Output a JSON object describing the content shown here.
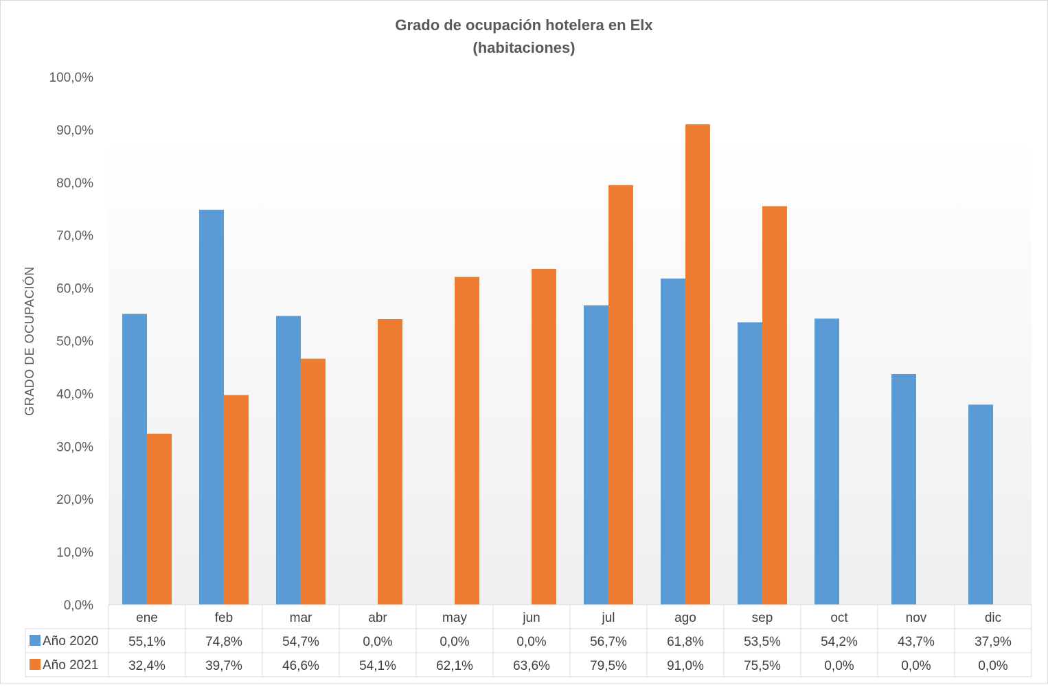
{
  "chart_data": {
    "type": "bar",
    "title": "Grado de ocupación hotelera en Elx",
    "subtitle": "(habitaciones)",
    "ylabel": "GRADO DE OCUPACIÓN",
    "xlabel": "",
    "ylim": [
      0,
      100
    ],
    "yticks": [
      "0,0%",
      "10,0%",
      "20,0%",
      "30,0%",
      "40,0%",
      "50,0%",
      "60,0%",
      "70,0%",
      "80,0%",
      "90,0%",
      "100,0%"
    ],
    "categories": [
      "ene",
      "feb",
      "mar",
      "abr",
      "may",
      "jun",
      "jul",
      "ago",
      "sep",
      "oct",
      "nov",
      "dic"
    ],
    "series": [
      {
        "name": "Año 2020",
        "color": "#5b9bd5",
        "values": [
          55.1,
          74.8,
          54.7,
          0.0,
          0.0,
          0.0,
          56.7,
          61.8,
          53.5,
          54.2,
          43.7,
          37.9
        ],
        "labels": [
          "55,1%",
          "74,8%",
          "54,7%",
          "0,0%",
          "0,0%",
          "0,0%",
          "56,7%",
          "61,8%",
          "53,5%",
          "54,2%",
          "43,7%",
          "37,9%"
        ]
      },
      {
        "name": "Año 2021",
        "color": "#ed7d31",
        "values": [
          32.4,
          39.7,
          46.6,
          54.1,
          62.1,
          63.6,
          79.5,
          91.0,
          75.5,
          0.0,
          0.0,
          0.0
        ],
        "labels": [
          "32,4%",
          "39,7%",
          "46,6%",
          "54,1%",
          "62,1%",
          "63,6%",
          "79,5%",
          "91,0%",
          "75,5%",
          "0,0%",
          "0,0%",
          "0,0%"
        ]
      }
    ],
    "grid": false,
    "legend": "data-table"
  }
}
